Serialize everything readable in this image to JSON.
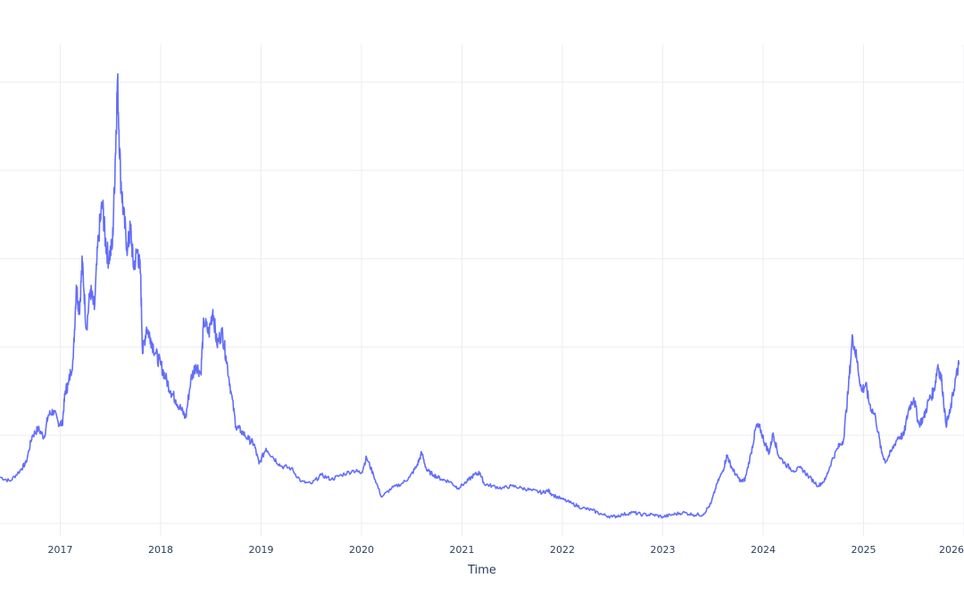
{
  "chart_data": {
    "type": "line",
    "title": "",
    "xlabel": "Time",
    "ylabel": "",
    "grid": true,
    "x_ticks": [
      {
        "value": 2017,
        "label": "2017"
      },
      {
        "value": 2018,
        "label": "2018"
      },
      {
        "value": 2019,
        "label": "2019"
      },
      {
        "value": 2020,
        "label": "2020"
      },
      {
        "value": 2021,
        "label": "2021"
      },
      {
        "value": 2022,
        "label": "2022"
      },
      {
        "value": 2023,
        "label": "2023"
      },
      {
        "value": 2024,
        "label": "2024"
      },
      {
        "value": 2025,
        "label": "2025"
      },
      {
        "value": 2026,
        "label": "2026"
      }
    ],
    "y_gridlines": [
      0,
      20,
      40,
      60,
      80,
      100
    ],
    "xlim": [
      2016.4,
      2026.0
    ],
    "ylim": [
      -2,
      106
    ],
    "series": [
      {
        "name": "",
        "color": "#636efa",
        "points": [
          [
            2016.4,
            10.5
          ],
          [
            2016.5,
            9.6
          ],
          [
            2016.6,
            12.0
          ],
          [
            2016.66,
            13.8
          ],
          [
            2016.72,
            19.8
          ],
          [
            2016.78,
            21.5
          ],
          [
            2016.84,
            19.5
          ],
          [
            2016.88,
            24.5
          ],
          [
            2016.93,
            25.5
          ],
          [
            2016.98,
            23.0
          ],
          [
            2017.02,
            22.5
          ],
          [
            2017.05,
            30.0
          ],
          [
            2017.08,
            31.5
          ],
          [
            2017.13,
            37.5
          ],
          [
            2017.16,
            54.0
          ],
          [
            2017.19,
            48.0
          ],
          [
            2017.22,
            59.5
          ],
          [
            2017.26,
            44.0
          ],
          [
            2017.3,
            53.0
          ],
          [
            2017.34,
            48.5
          ],
          [
            2017.38,
            65.0
          ],
          [
            2017.42,
            72.5
          ],
          [
            2017.45,
            64.0
          ],
          [
            2017.48,
            60.0
          ],
          [
            2017.52,
            63.0
          ],
          [
            2017.55,
            84.0
          ],
          [
            2017.57,
            100.5
          ],
          [
            2017.6,
            79.0
          ],
          [
            2017.63,
            70.0
          ],
          [
            2017.67,
            62.0
          ],
          [
            2017.7,
            67.0
          ],
          [
            2017.73,
            58.0
          ],
          [
            2017.77,
            62.0
          ],
          [
            2017.8,
            56.5
          ],
          [
            2017.82,
            38.5
          ],
          [
            2017.86,
            44.5
          ],
          [
            2017.9,
            42.0
          ],
          [
            2017.95,
            38.5
          ],
          [
            2018.0,
            36.0
          ],
          [
            2018.05,
            33.0
          ],
          [
            2018.1,
            30.0
          ],
          [
            2018.15,
            28.0
          ],
          [
            2018.2,
            26.0
          ],
          [
            2018.25,
            24.0
          ],
          [
            2018.3,
            32.5
          ],
          [
            2018.35,
            36.0
          ],
          [
            2018.4,
            34.0
          ],
          [
            2018.43,
            46.0
          ],
          [
            2018.48,
            43.0
          ],
          [
            2018.52,
            48.5
          ],
          [
            2018.56,
            40.5
          ],
          [
            2018.61,
            43.5
          ],
          [
            2018.65,
            38.0
          ],
          [
            2018.7,
            30.0
          ],
          [
            2018.75,
            22.0
          ],
          [
            2018.8,
            21.0
          ],
          [
            2018.88,
            19.0
          ],
          [
            2018.93,
            18.0
          ],
          [
            2018.98,
            13.5
          ],
          [
            2019.05,
            17.0
          ],
          [
            2019.12,
            15.0
          ],
          [
            2019.2,
            13.0
          ],
          [
            2019.3,
            12.5
          ],
          [
            2019.4,
            9.5
          ],
          [
            2019.5,
            9.0
          ],
          [
            2019.6,
            11.0
          ],
          [
            2019.7,
            10.0
          ],
          [
            2019.8,
            11.0
          ],
          [
            2019.92,
            12.0
          ],
          [
            2020.0,
            11.5
          ],
          [
            2020.05,
            15.0
          ],
          [
            2020.12,
            11.0
          ],
          [
            2020.2,
            6.0
          ],
          [
            2020.3,
            8.0
          ],
          [
            2020.4,
            9.0
          ],
          [
            2020.48,
            10.5
          ],
          [
            2020.55,
            13.0
          ],
          [
            2020.6,
            16.0
          ],
          [
            2020.65,
            12.0
          ],
          [
            2020.72,
            11.0
          ],
          [
            2020.8,
            10.0
          ],
          [
            2020.88,
            9.5
          ],
          [
            2020.96,
            8.0
          ],
          [
            2021.05,
            9.5
          ],
          [
            2021.12,
            11.0
          ],
          [
            2021.18,
            11.5
          ],
          [
            2021.22,
            9.0
          ],
          [
            2021.3,
            8.5
          ],
          [
            2021.4,
            8.0
          ],
          [
            2021.5,
            8.5
          ],
          [
            2021.6,
            8.0
          ],
          [
            2021.7,
            7.5
          ],
          [
            2021.8,
            7.0
          ],
          [
            2021.86,
            7.5
          ],
          [
            2021.9,
            6.5
          ],
          [
            2022.0,
            5.5
          ],
          [
            2022.1,
            4.5
          ],
          [
            2022.2,
            3.5
          ],
          [
            2022.3,
            3.0
          ],
          [
            2022.4,
            2.0
          ],
          [
            2022.5,
            1.5
          ],
          [
            2022.6,
            2.0
          ],
          [
            2022.7,
            2.5
          ],
          [
            2022.8,
            2.0
          ],
          [
            2022.9,
            2.0
          ],
          [
            2023.0,
            1.5
          ],
          [
            2023.1,
            2.0
          ],
          [
            2023.2,
            2.5
          ],
          [
            2023.3,
            2.0
          ],
          [
            2023.4,
            2.0
          ],
          [
            2023.48,
            4.5
          ],
          [
            2023.54,
            9.0
          ],
          [
            2023.6,
            12.0
          ],
          [
            2023.64,
            15.5
          ],
          [
            2023.68,
            13.0
          ],
          [
            2023.73,
            11.0
          ],
          [
            2023.78,
            9.5
          ],
          [
            2023.82,
            10.0
          ],
          [
            2023.88,
            16.0
          ],
          [
            2023.93,
            22.0
          ],
          [
            2023.97,
            21.5
          ],
          [
            2024.02,
            18.0
          ],
          [
            2024.06,
            16.0
          ],
          [
            2024.1,
            20.5
          ],
          [
            2024.15,
            15.5
          ],
          [
            2024.22,
            13.5
          ],
          [
            2024.3,
            12.0
          ],
          [
            2024.38,
            12.5
          ],
          [
            2024.46,
            10.5
          ],
          [
            2024.55,
            8.5
          ],
          [
            2024.62,
            10.0
          ],
          [
            2024.68,
            14.0
          ],
          [
            2024.74,
            17.0
          ],
          [
            2024.8,
            19.0
          ],
          [
            2024.85,
            31.0
          ],
          [
            2024.89,
            42.5
          ],
          [
            2024.93,
            37.5
          ],
          [
            2024.98,
            30.0
          ],
          [
            2025.02,
            31.5
          ],
          [
            2025.06,
            27.0
          ],
          [
            2025.12,
            24.0
          ],
          [
            2025.18,
            16.0
          ],
          [
            2025.22,
            14.0
          ],
          [
            2025.28,
            16.5
          ],
          [
            2025.34,
            19.5
          ],
          [
            2025.4,
            20.0
          ],
          [
            2025.45,
            26.0
          ],
          [
            2025.5,
            28.5
          ],
          [
            2025.55,
            22.5
          ],
          [
            2025.6,
            24.0
          ],
          [
            2025.65,
            28.0
          ],
          [
            2025.7,
            30.0
          ],
          [
            2025.74,
            36.0
          ],
          [
            2025.78,
            32.0
          ],
          [
            2025.82,
            22.5
          ],
          [
            2025.86,
            25.0
          ],
          [
            2025.91,
            32.0
          ],
          [
            2025.95,
            36.0
          ]
        ]
      }
    ]
  }
}
